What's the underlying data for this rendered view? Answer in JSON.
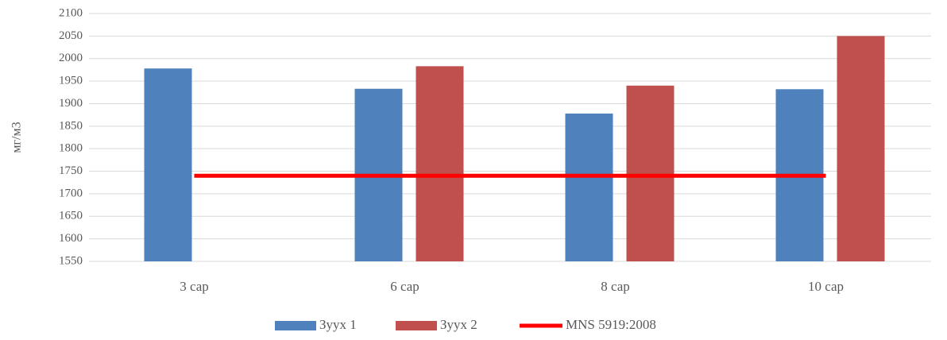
{
  "chart_data": {
    "type": "bar",
    "y_label": "мг/м3",
    "categories": [
      "3 сар",
      "6 сар",
      "8 сар",
      "10 сар"
    ],
    "series": [
      {
        "name": "Зуух 1",
        "color": "#4f81bd",
        "type": "bar",
        "values": [
          1978,
          1933,
          1878,
          1932
        ]
      },
      {
        "name": "Зуух 2",
        "color": "#c0504d",
        "type": "bar",
        "values": [
          null,
          1983,
          1940,
          2050
        ]
      },
      {
        "name": "MNS 5919:2008",
        "color": "#ff0000",
        "type": "line",
        "values": [
          1740,
          1740,
          1740,
          1740
        ]
      }
    ],
    "ylim": [
      1550,
      2100
    ],
    "yticks": [
      1550,
      1600,
      1650,
      1700,
      1750,
      1800,
      1850,
      1900,
      1950,
      2000,
      2050,
      2100
    ],
    "grid": true,
    "legend": "bottom"
  }
}
